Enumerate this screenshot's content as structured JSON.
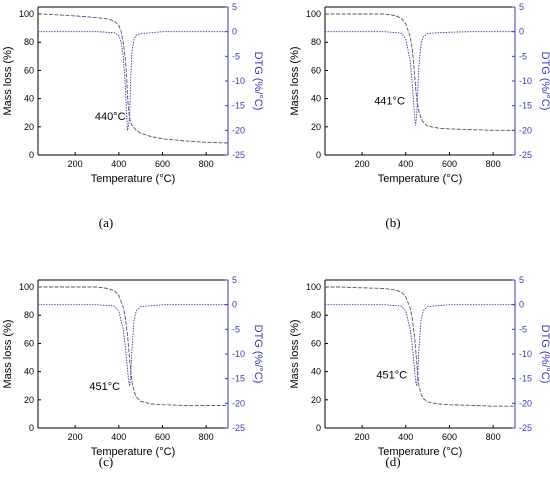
{
  "chart_data": [
    {
      "type": "line",
      "panel_label": "(a)",
      "xlabel": "Temperature (°C)",
      "ylabel_left": "Mass loss (%)",
      "ylabel_right": "DTG (%/°C)",
      "xlim": [
        30,
        900
      ],
      "ylim_left": [
        0,
        105
      ],
      "ylim_right": [
        -25,
        5
      ],
      "xticks": [
        200,
        400,
        600,
        800
      ],
      "yticks_left": [
        0,
        20,
        40,
        60,
        80,
        100
      ],
      "yticks_right": [
        5,
        0,
        -5,
        -10,
        -15,
        -20,
        -25
      ],
      "annotation": {
        "text": "440°C",
        "x": 440,
        "y": 25
      },
      "series": [
        {
          "axis": "left",
          "color": "#555555",
          "dash": "dashed",
          "x": [
            30,
            100,
            200,
            300,
            350,
            380,
            400,
            410,
            420,
            430,
            436,
            440,
            445,
            450,
            460,
            480,
            500,
            550,
            600,
            700,
            800,
            900
          ],
          "y": [
            100,
            99.6,
            98.7,
            97.5,
            96.5,
            95,
            92,
            88,
            80,
            68,
            55,
            42,
            32,
            26,
            21,
            17.5,
            15.5,
            13,
            11.5,
            10,
            9,
            8.5
          ]
        },
        {
          "axis": "right",
          "color": "#3a3ab5",
          "dash": "dotted",
          "x": [
            30,
            200,
            300,
            380,
            400,
            410,
            420,
            430,
            435,
            440,
            445,
            450,
            455,
            460,
            470,
            480,
            500,
            550,
            600,
            700,
            800,
            900
          ],
          "y": [
            0,
            0,
            0,
            -0.2,
            -0.8,
            -2,
            -5,
            -11,
            -16,
            -20,
            -19,
            -17,
            -9,
            -4,
            -1.5,
            -0.7,
            -0.4,
            -0.2,
            0,
            0,
            0,
            0
          ]
        }
      ]
    },
    {
      "type": "line",
      "panel_label": "(b)",
      "xlabel": "Temperature (°C)",
      "ylabel_left": "Mass loss (%)",
      "ylabel_right": "DTG (%/°C)",
      "xlim": [
        30,
        900
      ],
      "ylim_left": [
        0,
        105
      ],
      "ylim_right": [
        -25,
        5
      ],
      "xticks": [
        200,
        400,
        600,
        800
      ],
      "yticks_left": [
        0,
        20,
        40,
        60,
        80,
        100
      ],
      "yticks_right": [
        5,
        0,
        -5,
        -10,
        -15,
        -20,
        -25
      ],
      "annotation": {
        "text": "441°C",
        "x": 405,
        "y": 36
      },
      "series": [
        {
          "axis": "left",
          "color": "#555555",
          "dash": "dashed",
          "x": [
            30,
            100,
            200,
            300,
            350,
            380,
            400,
            420,
            430,
            440,
            445,
            450,
            460,
            470,
            480,
            500,
            550,
            600,
            700,
            800,
            900
          ],
          "y": [
            100,
            100,
            100,
            100,
            99,
            97,
            93,
            84,
            74,
            58,
            48,
            40,
            31,
            26,
            23,
            20.5,
            19,
            18.5,
            18,
            17.5,
            17.5
          ]
        },
        {
          "axis": "right",
          "color": "#3a3ab5",
          "dash": "dotted",
          "x": [
            30,
            200,
            300,
            380,
            400,
            420,
            430,
            440,
            445,
            450,
            455,
            460,
            470,
            480,
            500,
            550,
            600,
            700,
            800,
            900
          ],
          "y": [
            0,
            0,
            0,
            -0.3,
            -1.5,
            -6,
            -11,
            -17,
            -19,
            -17,
            -12,
            -7,
            -2.5,
            -1,
            -0.4,
            -0.2,
            -0.1,
            0,
            0,
            0
          ]
        }
      ]
    },
    {
      "type": "line",
      "panel_label": "(c)",
      "xlabel": "Temperature (°C)",
      "ylabel_left": "Mass loss (%)",
      "ylabel_right": "DTG (%/°C)",
      "xlim": [
        30,
        900
      ],
      "ylim_left": [
        0,
        105
      ],
      "ylim_right": [
        -25,
        5
      ],
      "xticks": [
        200,
        400,
        600,
        800
      ],
      "yticks_left": [
        0,
        20,
        40,
        60,
        80,
        100
      ],
      "yticks_right": [
        5,
        0,
        -5,
        -10,
        -15,
        -20,
        -25
      ],
      "annotation": {
        "text": "451°C",
        "x": 415,
        "y": 27
      },
      "series": [
        {
          "axis": "left",
          "color": "#555555",
          "dash": "dashed",
          "x": [
            30,
            100,
            200,
            300,
            350,
            380,
            400,
            420,
            430,
            440,
            450,
            455,
            460,
            470,
            480,
            500,
            550,
            600,
            700,
            800,
            900
          ],
          "y": [
            100,
            100,
            100,
            100,
            99,
            97.5,
            94,
            86,
            78,
            66,
            48,
            40,
            33,
            26,
            22,
            19,
            17,
            16.5,
            16,
            16,
            16
          ]
        },
        {
          "axis": "right",
          "color": "#3a3ab5",
          "dash": "dotted",
          "x": [
            30,
            200,
            300,
            380,
            400,
            420,
            430,
            440,
            445,
            450,
            455,
            460,
            470,
            480,
            500,
            550,
            600,
            700,
            800,
            900
          ],
          "y": [
            0,
            0,
            0,
            -0.3,
            -1.3,
            -5,
            -8.5,
            -13,
            -15.5,
            -16.5,
            -14,
            -9,
            -3,
            -1.2,
            -0.4,
            -0.2,
            0,
            0,
            0,
            0
          ]
        }
      ]
    },
    {
      "type": "line",
      "panel_label": "(d)",
      "xlabel": "Temperature (°C)",
      "ylabel_left": "Mass loss (%)",
      "ylabel_right": "DTG (%/°C)",
      "xlim": [
        30,
        900
      ],
      "ylim_left": [
        0,
        105
      ],
      "ylim_right": [
        -25,
        5
      ],
      "xticks": [
        200,
        400,
        600,
        800
      ],
      "yticks_left": [
        0,
        20,
        40,
        60,
        80,
        100
      ],
      "yticks_right": [
        5,
        0,
        -5,
        -10,
        -15,
        -20,
        -25
      ],
      "annotation": {
        "text": "451°C",
        "x": 415,
        "y": 35
      },
      "series": [
        {
          "axis": "left",
          "color": "#555555",
          "dash": "dashed",
          "x": [
            30,
            100,
            200,
            300,
            350,
            380,
            400,
            420,
            430,
            440,
            450,
            455,
            460,
            470,
            480,
            500,
            550,
            600,
            700,
            800,
            900
          ],
          "y": [
            100,
            100,
            99.5,
            99,
            98,
            96.5,
            93,
            85,
            77,
            65,
            47,
            38,
            30,
            24,
            21,
            18.5,
            17,
            16.5,
            16,
            15.5,
            15.5
          ]
        },
        {
          "axis": "right",
          "color": "#3a3ab5",
          "dash": "dotted",
          "x": [
            30,
            200,
            300,
            380,
            400,
            420,
            430,
            440,
            445,
            450,
            455,
            460,
            470,
            480,
            500,
            550,
            600,
            700,
            800,
            900
          ],
          "y": [
            0,
            0,
            0,
            -0.3,
            -1.3,
            -5,
            -8.5,
            -13,
            -15.5,
            -16.5,
            -14,
            -9,
            -3,
            -1.2,
            -0.4,
            -0.2,
            0,
            0,
            0,
            0
          ]
        }
      ]
    }
  ]
}
